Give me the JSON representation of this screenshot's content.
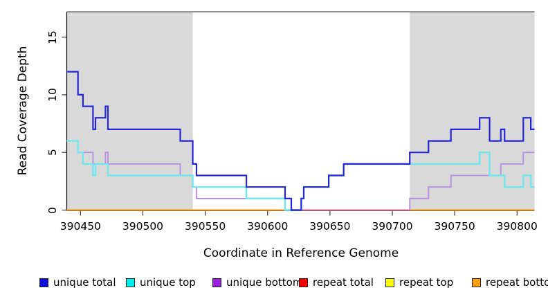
{
  "chart_data": {
    "type": "line",
    "step_style": "post",
    "title": "",
    "xlabel": "Coordinate in Reference Genome",
    "ylabel": "Read Coverage Depth",
    "xlim": [
      390439,
      390814
    ],
    "ylim": [
      0,
      17.2
    ],
    "x_ticks": [
      390450,
      390500,
      390550,
      390600,
      390650,
      390700,
      390750,
      390800
    ],
    "y_ticks": [
      0,
      5,
      10,
      15
    ],
    "grid": "off",
    "legend_position": "bottom-horizontal",
    "background_color": "#ffffff",
    "shaded_regions": [
      {
        "name": "left-repeat-region",
        "x0": 390439,
        "x1": 390540,
        "color": "#d9d9d9"
      },
      {
        "name": "right-repeat-region",
        "x0": 390714,
        "x1": 390814,
        "color": "#d9d9d9"
      }
    ],
    "top_border_color": "#555555",
    "series": [
      {
        "name": "repeat total",
        "color": "#f50000",
        "width": 1.6,
        "in_legend": true,
        "points": [
          [
            390439,
            0
          ]
        ]
      },
      {
        "name": "repeat top",
        "color": "#fafa00",
        "width": 1.6,
        "in_legend": true,
        "points": [
          [
            390439,
            0
          ]
        ]
      },
      {
        "name": "repeat bottom",
        "color": "#ff9a14",
        "width": 2,
        "in_legend": true,
        "points": [
          [
            390439,
            0
          ]
        ]
      },
      {
        "name": "unique bottom",
        "color": "#b68ce4",
        "width": 1.8,
        "in_legend": true,
        "points": [
          [
            390439,
            6
          ],
          [
            390448,
            5
          ],
          [
            390460,
            4
          ],
          [
            390470,
            5
          ],
          [
            390472,
            4
          ],
          [
            390530,
            3
          ],
          [
            390540,
            2
          ],
          [
            390543,
            1
          ],
          [
            390619,
            0
          ],
          [
            390714,
            1
          ],
          [
            390729,
            2
          ],
          [
            390747,
            3
          ],
          [
            390787,
            4
          ],
          [
            390805,
            5
          ]
        ]
      },
      {
        "name": "zero line overlay",
        "color": "#d4648e",
        "width": 1.8,
        "in_legend": false,
        "points": [
          [
            390614,
            0
          ]
        ],
        "x_end": 390714
      },
      {
        "name": "unique top",
        "color": "#6fe7ee",
        "width": 2.4,
        "in_legend": true,
        "points": [
          [
            390439,
            6
          ],
          [
            390448,
            5
          ],
          [
            390452,
            4
          ],
          [
            390460,
            3
          ],
          [
            390462,
            4
          ],
          [
            390472,
            3
          ],
          [
            390540,
            2
          ],
          [
            390583,
            1
          ],
          [
            390614,
            0
          ],
          [
            390627,
            1
          ],
          [
            390629,
            2
          ],
          [
            390649,
            3
          ],
          [
            390661,
            4
          ],
          [
            390770,
            5
          ],
          [
            390778,
            3
          ],
          [
            390790,
            2
          ],
          [
            390805,
            3
          ],
          [
            390811,
            2
          ]
        ]
      },
      {
        "name": "unique total",
        "color": "#2626d6",
        "width": 2.2,
        "in_legend": true,
        "points": [
          [
            390439,
            12
          ],
          [
            390448,
            10
          ],
          [
            390452,
            9
          ],
          [
            390460,
            7
          ],
          [
            390462,
            8
          ],
          [
            390470,
            9
          ],
          [
            390472,
            7
          ],
          [
            390530,
            6
          ],
          [
            390540,
            4
          ],
          [
            390543,
            3
          ],
          [
            390583,
            2
          ],
          [
            390614,
            1
          ],
          [
            390619,
            0
          ],
          [
            390627,
            1
          ],
          [
            390629,
            2
          ],
          [
            390649,
            3
          ],
          [
            390661,
            4
          ],
          [
            390714,
            5
          ],
          [
            390729,
            6
          ],
          [
            390747,
            7
          ],
          [
            390770,
            8
          ],
          [
            390778,
            6
          ],
          [
            390787,
            7
          ],
          [
            390790,
            6
          ],
          [
            390805,
            8
          ],
          [
            390811,
            7
          ]
        ]
      }
    ]
  },
  "legend": {
    "items": [
      {
        "label": "unique total",
        "color": "#0d0de0"
      },
      {
        "label": "unique top",
        "color": "#00eeee"
      },
      {
        "label": "unique bottom",
        "color": "#9c1fe0"
      },
      {
        "label": "repeat total",
        "color": "#f50000"
      },
      {
        "label": "repeat top",
        "color": "#fafa00"
      },
      {
        "label": "repeat bottom",
        "color": "#ffa012"
      }
    ]
  }
}
